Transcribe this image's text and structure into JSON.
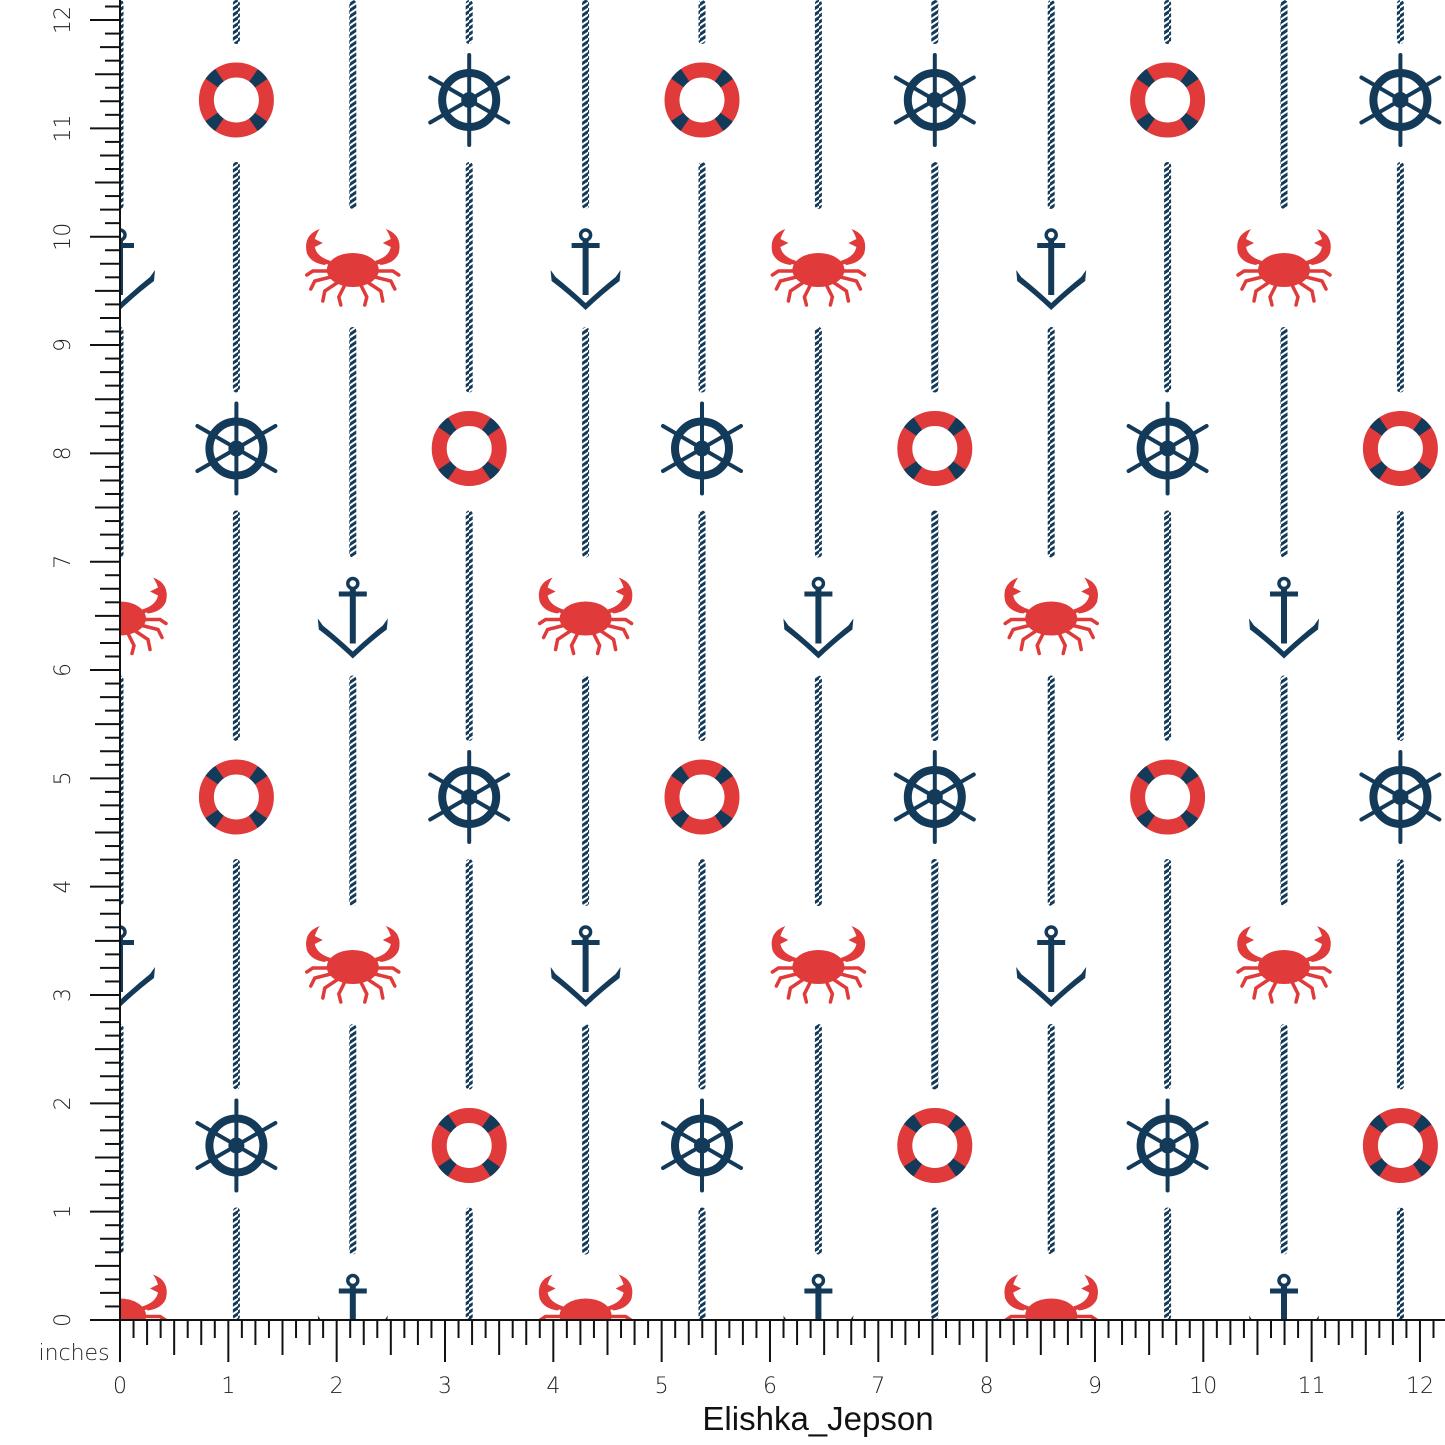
{
  "colors": {
    "navy": "#143a5a",
    "red": "#e03a3a",
    "ruler": "#111111",
    "background": "#ffffff"
  },
  "motifs": [
    "lifebuoy-icon",
    "ship-wheel-icon",
    "anchor-icon",
    "crab-icon"
  ],
  "ruler": {
    "unit_label": "inches",
    "x_labels": [
      "0",
      "1",
      "2",
      "3",
      "4",
      "5",
      "6",
      "7",
      "8",
      "9",
      "10",
      "11",
      "12"
    ],
    "y_labels": [
      "0",
      "1",
      "2",
      "3",
      "4",
      "5",
      "6",
      "7",
      "8",
      "9",
      "10",
      "11",
      "12"
    ],
    "ticks_per_inch": 8
  },
  "designer": "Elishka_Jepson"
}
